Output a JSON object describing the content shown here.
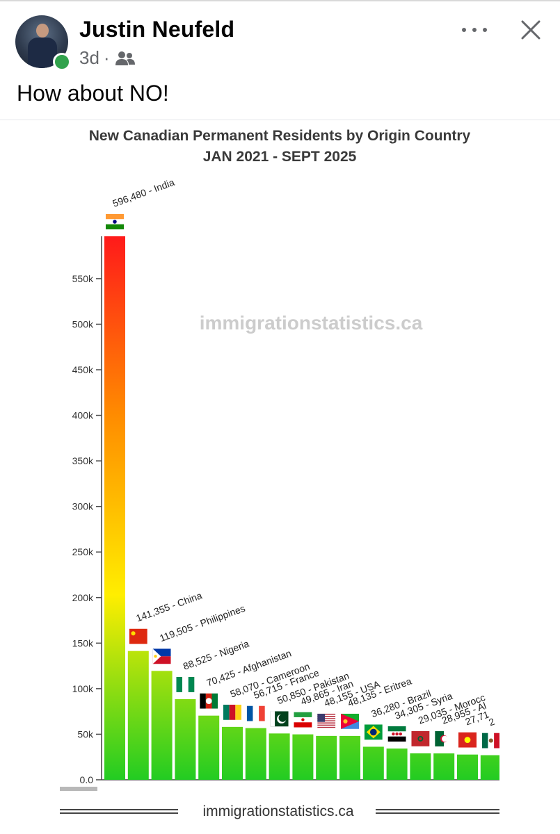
{
  "post": {
    "author": "Justin Neufeld",
    "time": "3d",
    "separator": "·",
    "audience_icon": "friends-icon",
    "text": "How about NO!"
  },
  "header_icons": {
    "more": "more-options-icon",
    "close": "close-icon"
  },
  "chart_data": {
    "type": "bar",
    "title": "New Canadian Permanent Residents by Origin Country",
    "subtitle": "JAN 2021 - SEPT 2025",
    "watermark": "immigrationstatistics.ca",
    "footer": "immigrationstatistics.ca",
    "ylim": [
      0,
      600000
    ],
    "yticks": [
      {
        "value": 0,
        "label": "0.0"
      },
      {
        "value": 50000,
        "label": "50k"
      },
      {
        "value": 100000,
        "label": "100k"
      },
      {
        "value": 150000,
        "label": "150k"
      },
      {
        "value": 200000,
        "label": "200k"
      },
      {
        "value": 250000,
        "label": "250k"
      },
      {
        "value": 300000,
        "label": "300k"
      },
      {
        "value": 350000,
        "label": "350k"
      },
      {
        "value": 400000,
        "label": "400k"
      },
      {
        "value": 450000,
        "label": "450k"
      },
      {
        "value": 500000,
        "label": "500k"
      },
      {
        "value": 550000,
        "label": "550k"
      }
    ],
    "gradient_colors": [
      "#ff1a1a",
      "#ff8c00",
      "#ffee00",
      "#22cc22"
    ],
    "bars": [
      {
        "value": 596480,
        "label": "596,480 - India",
        "flag": "india-flag-icon"
      },
      {
        "value": 141355,
        "label": "141,355 - China",
        "flag": "china-flag-icon"
      },
      {
        "value": 119505,
        "label": "119,505 - Philippines",
        "flag": "philippines-flag-icon"
      },
      {
        "value": 88525,
        "label": "88,525 - Nigeria",
        "flag": "nigeria-flag-icon"
      },
      {
        "value": 70425,
        "label": "70,425 - Afghanistan",
        "flag": "afghanistan-flag-icon"
      },
      {
        "value": 58070,
        "label": "58,070 - Cameroon",
        "flag": "cameroon-flag-icon"
      },
      {
        "value": 56715,
        "label": "56,715 - France",
        "flag": "france-flag-icon"
      },
      {
        "value": 50850,
        "label": "50,850 - Pakistan",
        "flag": "pakistan-flag-icon"
      },
      {
        "value": 49865,
        "label": "49,865 - Iran",
        "flag": "iran-flag-icon"
      },
      {
        "value": 48155,
        "label": "48,155 - USA",
        "flag": "usa-flag-icon"
      },
      {
        "value": 48135,
        "label": "48,135 - Eritrea",
        "flag": "eritrea-flag-icon"
      },
      {
        "value": 36280,
        "label": "36,280 - Brazil",
        "flag": "brazil-flag-icon"
      },
      {
        "value": 34305,
        "label": "34,305 - Syria",
        "flag": "syria-flag-icon"
      },
      {
        "value": 29035,
        "label": "29,035 - Morocc",
        "flag": "morocco-flag-icon"
      },
      {
        "value": 28955,
        "label": "28,955 - Al",
        "flag": "algeria-flag-icon"
      },
      {
        "value": 27710,
        "label": "27,71",
        "flag": "vietnam-flag-icon"
      },
      {
        "value": 27000,
        "label": "2",
        "flag": "mexico-flag-icon"
      }
    ]
  }
}
